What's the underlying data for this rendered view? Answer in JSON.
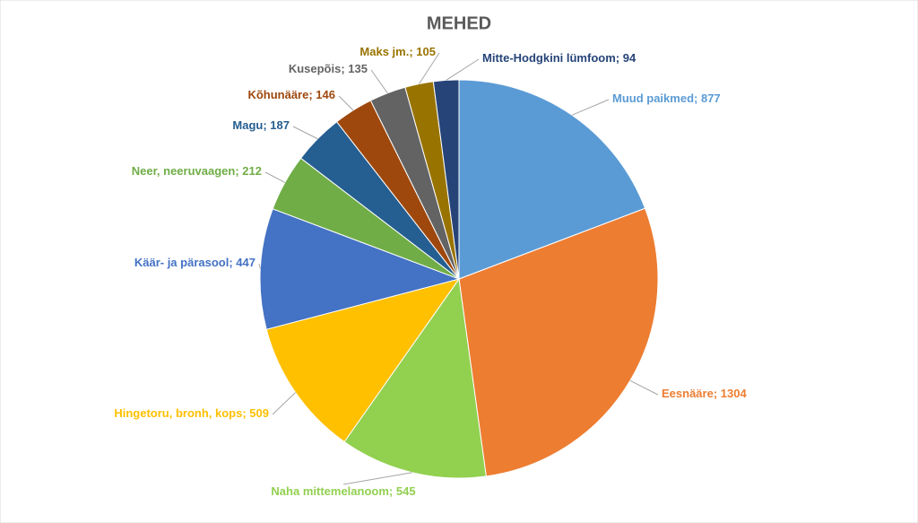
{
  "chart_data": {
    "type": "pie",
    "title": "MEHED",
    "label_separator": "; ",
    "categories": [
      "Muud paikmed",
      "Eesnääre",
      "Naha mittemelanoom",
      "Hingetoru, bronh, kops",
      "Käär- ja pärasool",
      "Neer, neeruvaagen",
      "Magu",
      "Kõhunääre",
      "Kusepõis",
      "Maks jm.",
      "Mitte-Hodgkini lümfoom"
    ],
    "values": [
      877,
      1304,
      545,
      509,
      447,
      212,
      187,
      146,
      135,
      105,
      94
    ],
    "colors": [
      "#5b9bd5",
      "#ed7d31",
      "#92d050",
      "#ffc000",
      "#4472c4",
      "#70ad47",
      "#255e91",
      "#9e480e",
      "#636363",
      "#997300",
      "#264478"
    ]
  }
}
